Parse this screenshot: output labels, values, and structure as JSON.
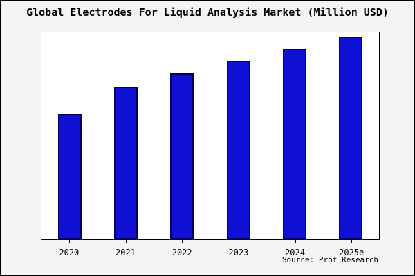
{
  "chart_data": {
    "type": "bar",
    "title": "Global Electrodes For Liquid Analysis Market (Million USD)",
    "categories": [
      "2020",
      "2021",
      "2022",
      "2023",
      "2024",
      "2025e"
    ],
    "values": [
      62,
      75,
      82,
      88,
      94,
      100
    ],
    "xlabel": "",
    "ylabel": "",
    "ylim": [
      0,
      102
    ],
    "grid": false,
    "legend": false,
    "note": "y-axis has no tick labels; values are relative bar heights with 2025e = 100"
  },
  "source": {
    "label": "Source: Prof Research"
  },
  "colors": {
    "bar_fill": "#1111d6",
    "bar_border": "#000066",
    "background": "#f4f4f2",
    "plot_background": "#ffffff",
    "frame": "#000000"
  }
}
